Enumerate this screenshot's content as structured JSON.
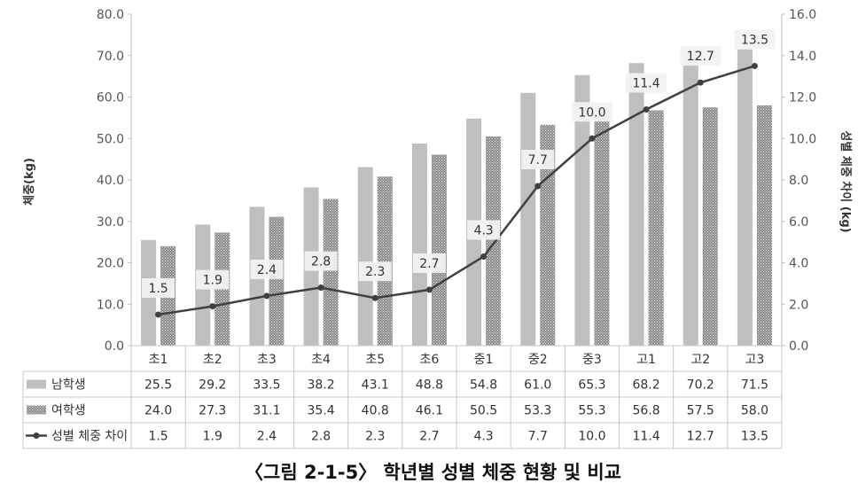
{
  "caption": "〈그림 2-1-5〉 학년별 성별 체중 현황 및 비교",
  "chart_data": {
    "type": "bar",
    "categories": [
      "초1",
      "초2",
      "초3",
      "초4",
      "초5",
      "초6",
      "중1",
      "중2",
      "중3",
      "고1",
      "고2",
      "고3"
    ],
    "series": [
      {
        "name": "남학생",
        "values": [
          25.5,
          29.2,
          33.5,
          38.2,
          43.1,
          48.8,
          54.8,
          61.0,
          65.3,
          68.2,
          70.2,
          71.5
        ],
        "color": "#bfbfbf",
        "pattern": "solid",
        "axis": "left",
        "type": "bar"
      },
      {
        "name": "여학생",
        "values": [
          24.0,
          27.3,
          31.1,
          35.4,
          40.8,
          46.1,
          50.5,
          53.3,
          55.3,
          56.8,
          57.5,
          58.0
        ],
        "color": "#7f7f7f",
        "pattern": "dotted",
        "axis": "left",
        "type": "bar"
      },
      {
        "name": "성별 체중 차이",
        "values": [
          1.5,
          1.9,
          2.4,
          2.8,
          2.3,
          2.7,
          4.3,
          7.7,
          10.0,
          11.4,
          12.7,
          13.5
        ],
        "color": "#404040",
        "axis": "right",
        "type": "line"
      }
    ],
    "ylabel": "체중(kg)",
    "ylabel_right": "성별 체중 차이 (kg)",
    "ylim": [
      0,
      80
    ],
    "ylim_right": [
      0,
      16
    ],
    "yticks": [
      "0.0",
      "10.0",
      "20.0",
      "30.0",
      "40.0",
      "50.0",
      "60.0",
      "70.0",
      "80.0"
    ],
    "yticks_right": [
      "0.0",
      "2.0",
      "4.0",
      "6.0",
      "8.0",
      "10.0",
      "12.0",
      "14.0",
      "16.0"
    ],
    "table_rows": [
      {
        "label": "남학생",
        "values": [
          "25.5",
          "29.2",
          "33.5",
          "38.2",
          "43.1",
          "48.8",
          "54.8",
          "61.0",
          "65.3",
          "68.2",
          "70.2",
          "71.5"
        ]
      },
      {
        "label": "여학생",
        "values": [
          "24.0",
          "27.3",
          "31.1",
          "35.4",
          "40.8",
          "46.1",
          "50.5",
          "53.3",
          "55.3",
          "56.8",
          "57.5",
          "58.0"
        ]
      },
      {
        "label": "성별 체중 차이",
        "values": [
          "1.5",
          "1.9",
          "2.4",
          "2.8",
          "2.3",
          "2.7",
          "4.3",
          "7.7",
          "10.0",
          "11.4",
          "12.7",
          "13.5"
        ]
      }
    ],
    "data_labels": [
      "1.5",
      "1.9",
      "2.4",
      "2.8",
      "2.3",
      "2.7",
      "4.3",
      "7.7",
      "10.0",
      "11.4",
      "12.7",
      "13.5"
    ],
    "grid": false,
    "legend_placement": "data-table"
  }
}
